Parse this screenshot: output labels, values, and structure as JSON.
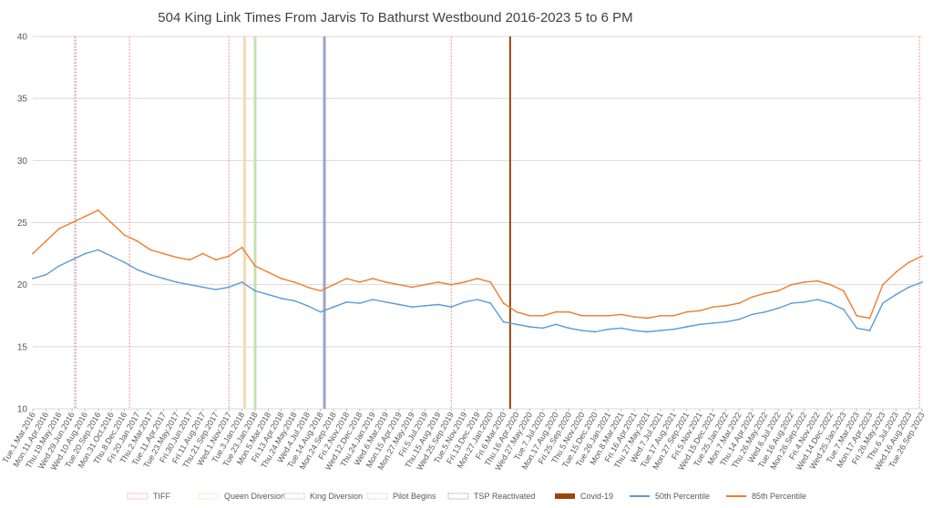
{
  "chart_data": {
    "type": "line",
    "title": "504 King Link Times From Jarvis To Bathurst Westbound 2016-2023 5 to 6 PM",
    "xlabel": "",
    "ylabel": "",
    "ylim": [
      10,
      40
    ],
    "yticks": [
      10,
      15,
      20,
      25,
      30,
      35,
      40
    ],
    "grid": true,
    "legend_position": "bottom",
    "x_tick_labels": [
      "Tue.1.Mar.2016",
      "Mon.11.Apr.2016",
      "Thu.19.May.2016",
      "Wed.29.Jun.2016",
      "Wed.10.Aug.2016",
      "Tue.20.Sep.2016",
      "Mon.31.Oct.2016",
      "Thu.8.Dec.2016",
      "Fri.20.Jan.2017",
      "Thu.2.Mar.2017",
      "Tue.11.Apr.2017",
      "Tue.23.May.2017",
      "Fri.30.Jun.2017",
      "Fri.11.Aug.2017",
      "Thu.21.Sep.2017",
      "Wed.1.Nov.2017",
      "Tue.3.Jan.2018",
      "Tue.23.Jan.2018",
      "Mon.5.Mar.2018",
      "Fri.13.Apr.2018",
      "Thu.24.May.2018",
      "Wed.4.Jul.2018",
      "Tue.14.Aug.2018",
      "Mon.24.Sep.2018",
      "Fri.2.Nov.2018",
      "Wed.12.Dec.2018",
      "Thu.24.Jan.2019",
      "Wed.6.Mar.2019",
      "Mon.15.Apr.2019",
      "Mon.27.May.2019",
      "Fri.5.Jul.2019",
      "Thu.15.Aug.2019",
      "Wed.25.Sep.2019",
      "Tue.5.Nov.2019",
      "Fri.13.Dec.2019",
      "Mon.27.Jan.2020",
      "Fri.6.Mar.2020",
      "Thu.16.Apr.2020",
      "Wed.27.May.2020",
      "Tue.7.Jul.2020",
      "Mon.17.Aug.2020",
      "Fri.25.Sep.2020",
      "Thu.5.Nov.2020",
      "Tue.15.Dec.2020",
      "Tue.26.Jan.2021",
      "Mon.8.Mar.2021",
      "Fri.16.Apr.2021",
      "Thu.27.May.2021",
      "Wed.7.Jul.2021",
      "Tue.17.Aug.2021",
      "Mon.27.Sep.2021",
      "Fri.5.Nov.2021",
      "Wed.15.Dec.2021",
      "Tue.25.Jan.2022",
      "Mon.7.Mar.2022",
      "Thu.14.Apr.2022",
      "Thu.26.May.2022",
      "Wed.6.Jul.2022",
      "Tue.16.Aug.2022",
      "Mon.26.Sep.2022",
      "Fri.4.Nov.2022",
      "Wed.14.Dec.2022",
      "Wed.25.Jan.2023",
      "Tue.7.Mar.2023",
      "Mon.17.Apr.2023",
      "Fri.26.May.2023",
      "Thu.6.Jul.2023",
      "Wed.16.Aug.2023",
      "Tue.26.Sep.2023"
    ],
    "events": [
      {
        "name": "TIFF",
        "color": "#f4a6a6",
        "dash": true,
        "x_index": 3.2
      },
      {
        "name": "TIFF",
        "color": "#f4a6a6",
        "dash": true,
        "x_index": 7.4
      },
      {
        "name": "TIFF",
        "color": "#f4a6a6",
        "dash": true,
        "x_index": 15.0
      },
      {
        "name": "TIFF",
        "color": "#f4a6a6",
        "dash": true,
        "x_index": 32.0
      },
      {
        "name": "TIFF",
        "color": "#f4a6a6",
        "dash": true,
        "x_index": 67.8
      },
      {
        "name": "Queen Diversion",
        "color": "#f6d9b4",
        "dash": false,
        "x_index": 16.2
      },
      {
        "name": "King Diversion",
        "color": "#c9b6dc",
        "dash": true,
        "x_index": 3.3
      },
      {
        "name": "Pilot Begins",
        "color": "#c5e0b3",
        "dash": false,
        "x_index": 17.0
      },
      {
        "name": "TSP Reactivated",
        "color": "#9aa6c8",
        "dash": false,
        "x_index": 22.3
      },
      {
        "name": "Covid-19",
        "color": "#a0440c",
        "dash": false,
        "x_index": 36.5
      }
    ],
    "series": [
      {
        "name": "50th Percentile",
        "color": "#5b9bd5",
        "values": [
          20.5,
          20.8,
          21.5,
          22.0,
          22.5,
          22.8,
          22.3,
          21.8,
          21.2,
          20.8,
          20.5,
          20.2,
          20.0,
          19.8,
          19.6,
          19.8,
          20.2,
          19.5,
          19.2,
          18.9,
          18.7,
          18.3,
          17.8,
          18.2,
          18.6,
          18.5,
          18.8,
          18.6,
          18.4,
          18.2,
          18.3,
          18.4,
          18.2,
          18.6,
          18.8,
          18.5,
          17.0,
          16.8,
          16.6,
          16.5,
          16.8,
          16.5,
          16.3,
          16.2,
          16.4,
          16.5,
          16.3,
          16.2,
          16.3,
          16.4,
          16.6,
          16.8,
          16.9,
          17.0,
          17.2,
          17.6,
          17.8,
          18.1,
          18.5,
          18.6,
          18.8,
          18.5,
          18.0,
          16.5,
          16.3,
          18.5,
          19.2,
          19.8,
          20.2
        ]
      },
      {
        "name": "85th Percentile",
        "color": "#ed7d31",
        "values": [
          22.5,
          23.5,
          24.5,
          25.0,
          25.5,
          26.0,
          25.0,
          24.0,
          23.5,
          22.8,
          22.5,
          22.2,
          22.0,
          22.5,
          22.0,
          22.3,
          23.0,
          21.5,
          21.0,
          20.5,
          20.2,
          19.8,
          19.5,
          20.0,
          20.5,
          20.2,
          20.5,
          20.2,
          20.0,
          19.8,
          20.0,
          20.2,
          20.0,
          20.2,
          20.5,
          20.2,
          18.5,
          17.8,
          17.5,
          17.5,
          17.8,
          17.8,
          17.5,
          17.5,
          17.5,
          17.6,
          17.4,
          17.3,
          17.5,
          17.5,
          17.8,
          17.9,
          18.2,
          18.3,
          18.5,
          19.0,
          19.3,
          19.5,
          20.0,
          20.2,
          20.3,
          20.0,
          19.5,
          17.5,
          17.3,
          20.0,
          21.0,
          21.8,
          22.3
        ]
      }
    ]
  },
  "legend": [
    {
      "label": "TIFF",
      "type": "event",
      "color": "#f4a6a6",
      "swatch": "hatch"
    },
    {
      "label": "Queen Diversion",
      "type": "event",
      "color": "#f6d9b4",
      "swatch": "hatch"
    },
    {
      "label": "King Diversion",
      "type": "event",
      "color": "#c9b6dc",
      "swatch": "hatch"
    },
    {
      "label": "Pilot Begins",
      "type": "event",
      "color": "#c5e0b3",
      "swatch": "hatch"
    },
    {
      "label": "TSP Reactivated",
      "type": "event",
      "color": "#9aa6c8",
      "swatch": "hatch"
    },
    {
      "label": "Covid-19",
      "type": "event",
      "color": "#a0440c",
      "swatch": "solid"
    },
    {
      "label": "50th Percentile",
      "type": "series",
      "color": "#5b9bd5",
      "swatch": "line"
    },
    {
      "label": "85th Percentile",
      "type": "series",
      "color": "#ed7d31",
      "swatch": "line"
    }
  ]
}
